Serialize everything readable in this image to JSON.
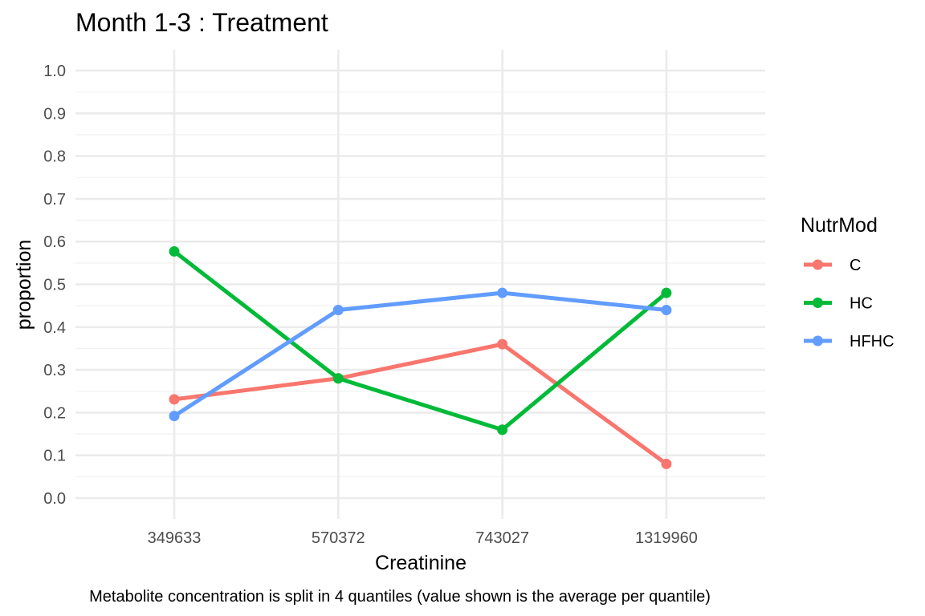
{
  "chart_data": {
    "type": "line",
    "title": "Month 1-3 : Treatment",
    "xlabel": "Creatinine",
    "ylabel": "proportion",
    "caption": "Metabolite concentration is split in 4 quantiles (value shown is the average per quantile)",
    "categories": [
      "349633",
      "570372",
      "743027",
      "1319960"
    ],
    "ylim": [
      0,
      1
    ],
    "y_ticks": [
      "0.0",
      "0.1",
      "0.2",
      "0.3",
      "0.4",
      "0.5",
      "0.6",
      "0.7",
      "0.8",
      "0.9",
      "1.0"
    ],
    "grid": true,
    "legend": {
      "title": "NutrMod",
      "position": "right"
    },
    "series": [
      {
        "name": "C",
        "color": "#F8766D",
        "values": [
          0.231,
          0.28,
          0.36,
          0.08
        ]
      },
      {
        "name": "HC",
        "color": "#00BA38",
        "values": [
          0.577,
          0.28,
          0.16,
          0.48
        ]
      },
      {
        "name": "HFHC",
        "color": "#619CFF",
        "values": [
          0.192,
          0.44,
          0.48,
          0.44
        ]
      }
    ]
  }
}
